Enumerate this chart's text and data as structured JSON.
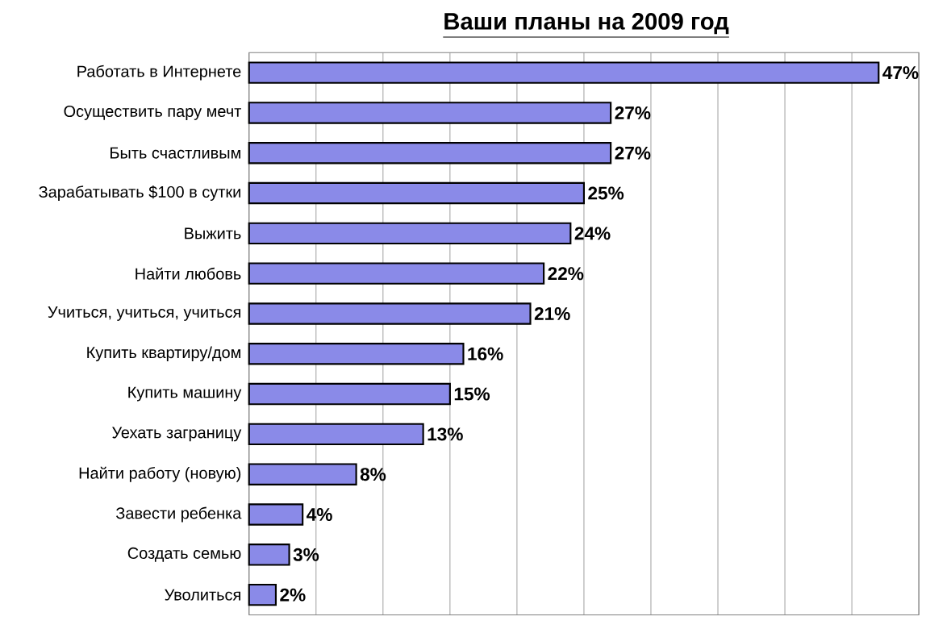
{
  "chart_data": {
    "type": "bar",
    "orientation": "horizontal",
    "title": "Ваши планы на 2009 год",
    "categories": [
      "Работать в Интернете",
      "Осуществить пару мечт",
      "Быть счастливым",
      "Зарабатывать $100 в сутки",
      "Выжить",
      "Найти любовь",
      "Учиться, учиться, учиться",
      "Купить квартиру/дом",
      "Купить машину",
      "Уехать заграницу",
      "Найти работу (новую)",
      "Завести ребенка",
      "Создать семью",
      "Уволиться"
    ],
    "values": [
      47,
      27,
      27,
      25,
      24,
      22,
      21,
      16,
      15,
      13,
      8,
      4,
      3,
      2
    ],
    "value_labels": [
      "47%",
      "27%",
      "27%",
      "25%",
      "24%",
      "22%",
      "21%",
      "16%",
      "15%",
      "13%",
      "8%",
      "4%",
      "3%",
      "2%"
    ],
    "color": "#8a8ae8",
    "xlim": [
      0,
      50
    ],
    "xticks": [
      {
        "value": 0,
        "label": null
      },
      {
        "value": 5,
        "label": null
      },
      {
        "value": 10,
        "label": null
      },
      {
        "value": 15,
        "label": null
      },
      {
        "value": 20,
        "label": null
      },
      {
        "value": 25,
        "label": null
      },
      {
        "value": 30,
        "label": null
      },
      {
        "value": 35,
        "label": null
      },
      {
        "value": 40,
        "label": null
      },
      {
        "value": 45,
        "label": null
      },
      {
        "value": 50,
        "label": null
      }
    ],
    "grid": "x",
    "tick_labels": "y"
  }
}
